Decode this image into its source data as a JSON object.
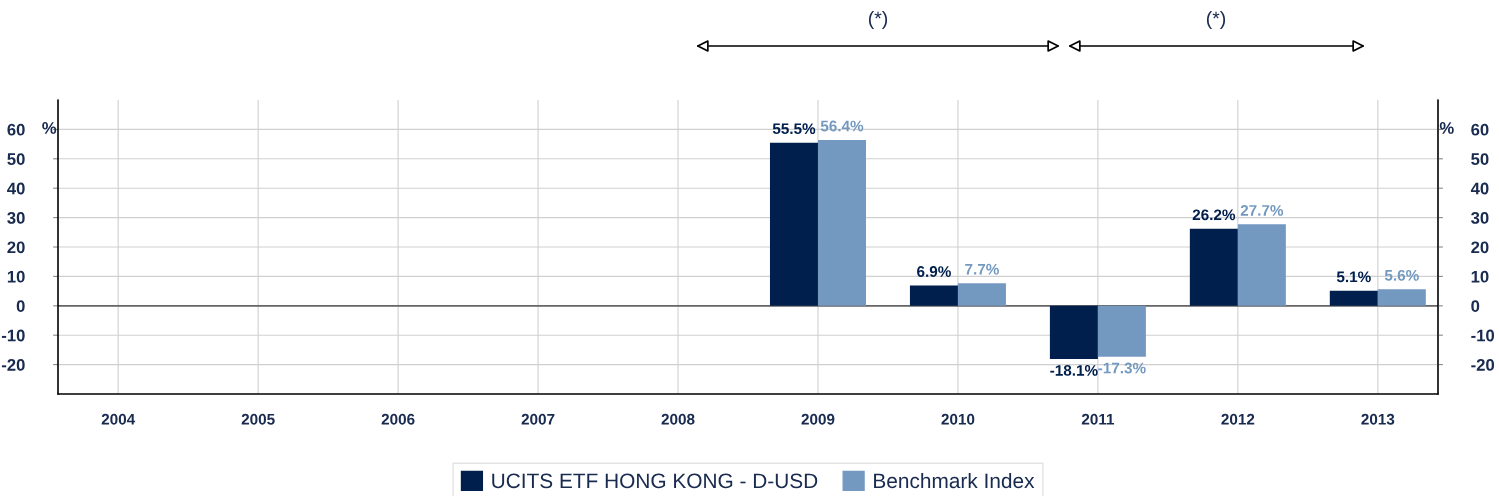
{
  "chart_data": {
    "type": "bar",
    "categories": [
      "2004",
      "2005",
      "2006",
      "2007",
      "2008",
      "2009",
      "2010",
      "2011",
      "2012",
      "2013"
    ],
    "series": [
      {
        "name": "UCITS ETF HONG KONG - D-USD",
        "color": "#001f4d",
        "values": [
          null,
          null,
          null,
          null,
          null,
          55.5,
          6.9,
          -18.1,
          26.2,
          5.1
        ],
        "value_labels": [
          null,
          null,
          null,
          null,
          null,
          "55.5%",
          "6.9%",
          "-18.1%",
          "26.2%",
          "5.1%"
        ]
      },
      {
        "name": "Benchmark Index",
        "color": "#7399c0",
        "values": [
          null,
          null,
          null,
          null,
          null,
          56.4,
          7.7,
          -17.3,
          27.7,
          5.6
        ],
        "value_labels": [
          null,
          null,
          null,
          null,
          null,
          "56.4%",
          "7.7%",
          "-17.3%",
          "27.7%",
          "5.6%"
        ]
      }
    ],
    "ylabel": "%",
    "y2label": "%",
    "ylim": [
      -30,
      70
    ],
    "yticks": [
      -20,
      -10,
      0,
      10,
      20,
      30,
      40,
      50,
      60
    ],
    "y2lim": [
      -30,
      70
    ],
    "y2ticks": [
      -20,
      -10,
      0,
      10,
      20,
      30,
      40,
      50,
      60
    ],
    "annotations": [
      "(*)",
      "(*)"
    ],
    "grid": true,
    "legend": "bottom"
  }
}
